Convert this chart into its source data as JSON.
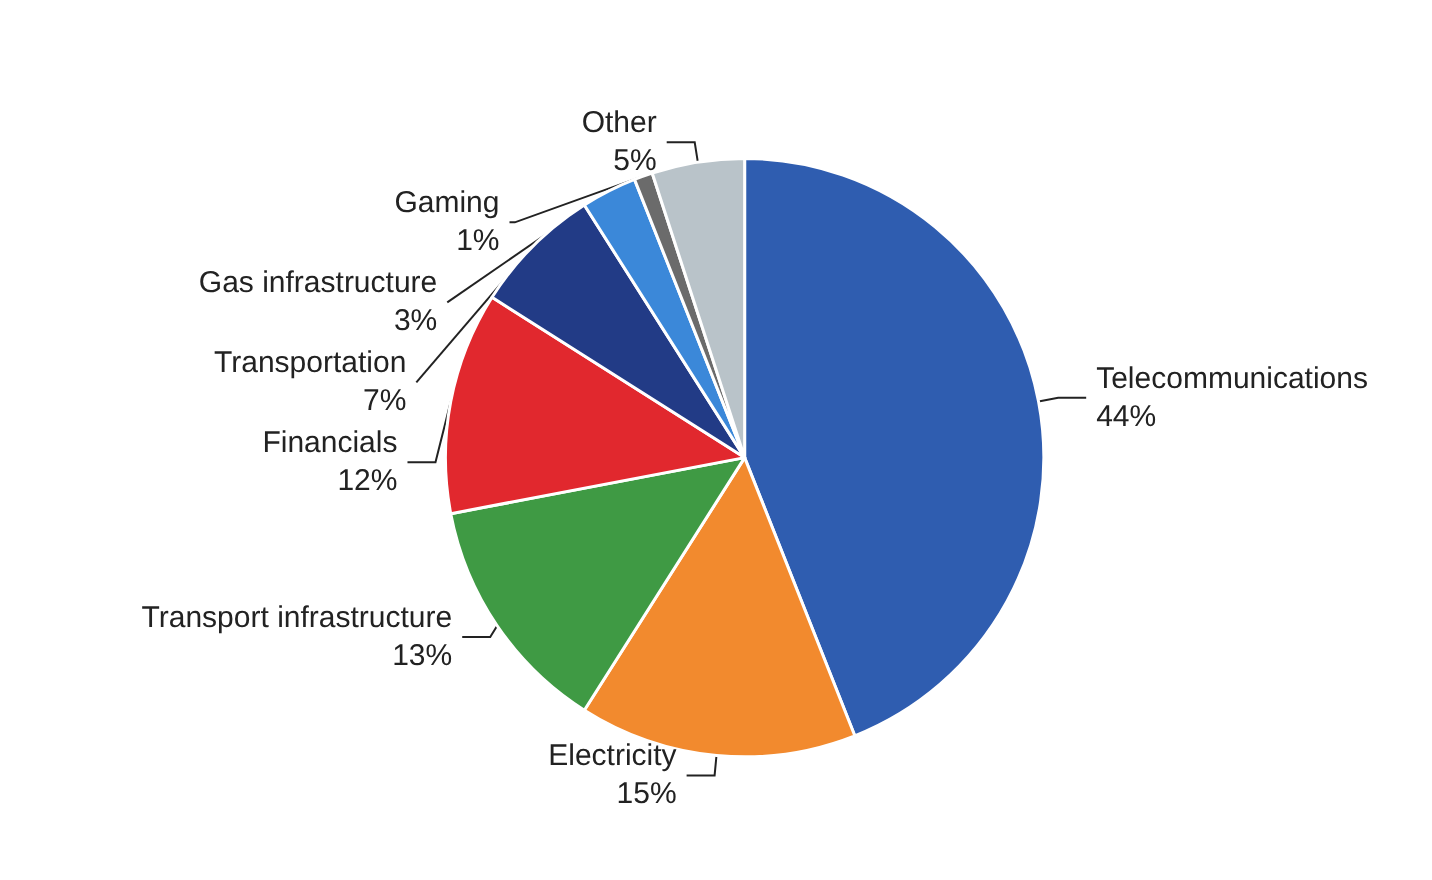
{
  "chart_data": {
    "type": "pie",
    "categories": [
      "Telecommunications",
      "Electricity",
      "Transport infrastructure",
      "Financials",
      "Transportation",
      "Gas infrastructure",
      "Gaming",
      "Other"
    ],
    "values": [
      44,
      15,
      13,
      12,
      7,
      3,
      1,
      5
    ],
    "value_labels": [
      "44%",
      "15%",
      "13%",
      "12%",
      "7%",
      "3%",
      "1%",
      "5%"
    ],
    "colors": [
      "#2f5db0",
      "#f28a2e",
      "#3f9a44",
      "#e1282e",
      "#223b86",
      "#3b88d9",
      "#6b6b6b",
      "#b9c3c9"
    ],
    "legend": false
  }
}
